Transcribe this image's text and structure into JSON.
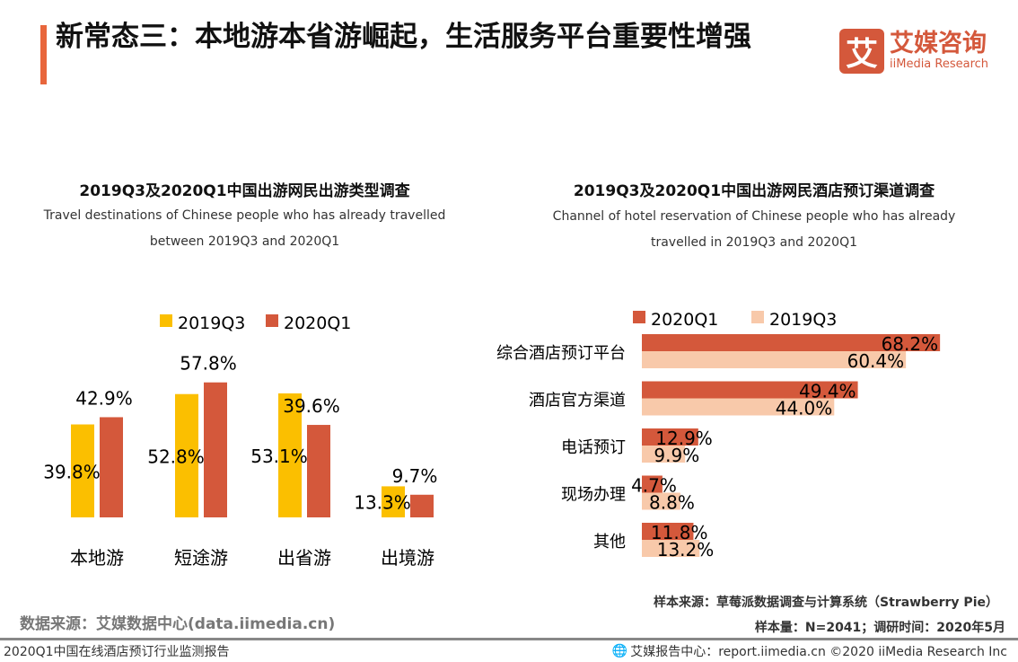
{
  "header": {
    "title": "新常态三：本地游本省游崛起，生活服务平台重要性增强",
    "logo_mark": "艾",
    "logo_cn": "艾媒咨询",
    "logo_en": "iiMedia Research"
  },
  "left_chart": {
    "title": "2019Q3及2020Q1中国出游网民出游类型调查",
    "subtitle_line1": "Travel destinations of Chinese people who has already travelled",
    "subtitle_line2": "between 2019Q3 and 2020Q1"
  },
  "right_chart": {
    "title": "2019Q3及2020Q1中国出游网民酒店预订渠道调查",
    "subtitle_line1": "Channel of hotel reservation of Chinese people who has already",
    "subtitle_line2": "travelled  in 2019Q3 and 2020Q1"
  },
  "chart_data": [
    {
      "type": "bar",
      "orientation": "vertical",
      "categories": [
        "本地游",
        "短途游",
        "出省游",
        "出境游"
      ],
      "series": [
        {
          "name": "2019Q3",
          "values": [
            39.8,
            52.8,
            53.1,
            13.3
          ],
          "color": "#fbbf00"
        },
        {
          "name": "2020Q1",
          "values": [
            42.9,
            57.8,
            39.6,
            9.7
          ],
          "color": "#d4583b"
        }
      ],
      "unit": "%",
      "legend": "top",
      "grid": false
    },
    {
      "type": "bar",
      "orientation": "horizontal",
      "categories": [
        "综合酒店预订平台",
        "酒店官方渠道",
        "电话预订",
        "现场办理",
        "其他"
      ],
      "series": [
        {
          "name": "2020Q1",
          "values": [
            68.2,
            49.4,
            12.9,
            4.7,
            11.8
          ],
          "color": "#d4583b"
        },
        {
          "name": "2019Q3",
          "values": [
            60.4,
            44.0,
            9.9,
            8.8,
            13.2
          ],
          "color": "#f8c9aa"
        }
      ],
      "unit": "%",
      "legend": "top",
      "grid": false
    }
  ],
  "footer": {
    "sample_source": "样本来源：草莓派数据调查与计算系统（Strawberry Pie）",
    "sample_size": "样本量：N=2041；调研时间：2020年5月",
    "data_source": "数据来源：艾媒数据中心(data.iimedia.cn)",
    "report_name": "2020Q1中国在线酒店预订行业监测报告",
    "report_center": "艾媒报告中心：report.iimedia.cn  ©2020  iiMedia Research  Inc"
  }
}
